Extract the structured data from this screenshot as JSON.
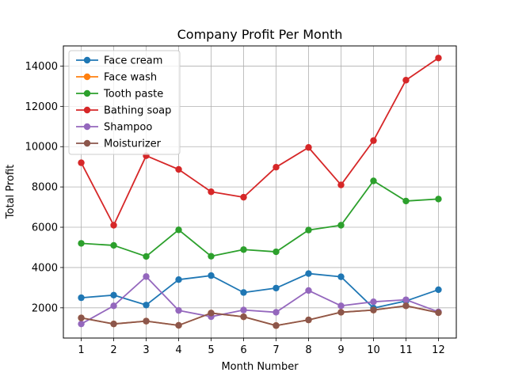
{
  "chart_data": {
    "type": "line",
    "title": "Company Profit Per Month",
    "xlabel": "Month Number",
    "ylabel": "Total Profit",
    "x": [
      1,
      2,
      3,
      4,
      5,
      6,
      7,
      8,
      9,
      10,
      11,
      12
    ],
    "xlim": [
      0.45,
      12.55
    ],
    "ylim": [
      500,
      15000
    ],
    "yticks": [
      2000,
      4000,
      6000,
      8000,
      10000,
      12000,
      14000
    ],
    "grid": true,
    "legend_position": "upper left",
    "series": [
      {
        "name": "Face cream",
        "color": "#1f77b4",
        "values": [
          2500,
          2630,
          2140,
          3400,
          3600,
          2760,
          2980,
          3700,
          3540,
          1990,
          2340,
          2900
        ]
      },
      {
        "name": "Face wash",
        "color": "#ff7f0e",
        "values": [
          1500,
          1200,
          1340,
          1130,
          1740,
          1555,
          1120,
          1400,
          1780,
          1890,
          2100,
          1760
        ]
      },
      {
        "name": "Tooth paste",
        "color": "#2ca02c",
        "values": [
          5200,
          5100,
          4550,
          5870,
          4560,
          4890,
          4780,
          5860,
          6100,
          8300,
          7300,
          7400
        ]
      },
      {
        "name": "Bathing soap",
        "color": "#d62728",
        "values": [
          9200,
          6100,
          9550,
          8870,
          7760,
          7490,
          8980,
          9960,
          8100,
          10300,
          13300,
          14400
        ]
      },
      {
        "name": "Shampoo",
        "color": "#9467bd",
        "values": [
          1200,
          2100,
          3550,
          1870,
          1560,
          1890,
          1780,
          2860,
          2100,
          2300,
          2400,
          1800
        ]
      },
      {
        "name": "Moisturizer",
        "color": "#8c564b",
        "values": [
          1500,
          1200,
          1340,
          1130,
          1740,
          1555,
          1120,
          1400,
          1780,
          1890,
          2100,
          1760
        ]
      }
    ]
  }
}
